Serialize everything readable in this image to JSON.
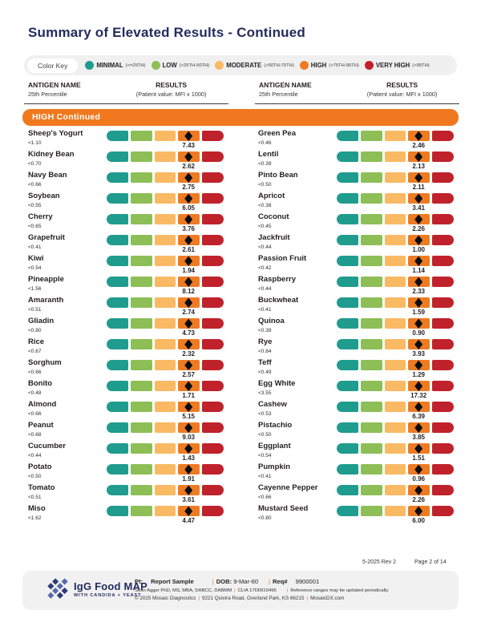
{
  "page": {
    "title": "Summary of Elevated Results - Continued"
  },
  "colors": {
    "banner": "#f0791f",
    "navy": "#242b5d",
    "marker": "#0d0d0d",
    "segment_colors": [
      "#1f9c8e",
      "#8dbf56",
      "#fab963",
      "#ee7b22",
      "#c0222b"
    ]
  },
  "color_key": {
    "label": "Color Key",
    "levels": [
      {
        "name": "MINIMAL",
        "range": "(<=25TH)",
        "color": "#1f9c8e"
      },
      {
        "name": "LOW",
        "range": "(>25TH-50TH)",
        "color": "#8dbf56"
      },
      {
        "name": "MODERATE",
        "range": "(>50TH-75TH)",
        "color": "#fab963"
      },
      {
        "name": "HIGH",
        "range": "(>75TH-95TH)",
        "color": "#ee7b22"
      },
      {
        "name": "VERY HIGH",
        "range": "(>95TH)",
        "color": "#c0222b"
      }
    ]
  },
  "column_headers": {
    "antigen_name": "ANTIGEN NAME",
    "antigen_sub": "25th Percentile",
    "results": "RESULTS",
    "results_sub": "(Patient value: MFI x 1000)"
  },
  "section": {
    "label": "HIGH Continued",
    "marker_note": "diamond marker sits in HIGH segment for every antigen"
  },
  "columns": {
    "left": [
      {
        "name": "Sheep's Yogurt",
        "percentile": "<1.10",
        "value": "7.43"
      },
      {
        "name": "Kidney Bean",
        "percentile": "<0.70",
        "value": "2.62"
      },
      {
        "name": "Navy Bean",
        "percentile": "<0.66",
        "value": "2.75"
      },
      {
        "name": "Soybean",
        "percentile": "<0.55",
        "value": "6.05"
      },
      {
        "name": "Cherry",
        "percentile": "<0.65",
        "value": "3.76"
      },
      {
        "name": "Grapefruit",
        "percentile": "<0.41",
        "value": "2.61"
      },
      {
        "name": "Kiwi",
        "percentile": "<0.54",
        "value": "1.94"
      },
      {
        "name": "Pineapple",
        "percentile": "<1.56",
        "value": "8.12"
      },
      {
        "name": "Amaranth",
        "percentile": "<0.51",
        "value": "2.74"
      },
      {
        "name": "Gliadin",
        "percentile": "<0.80",
        "value": "4.73"
      },
      {
        "name": "Rice",
        "percentile": "<0.67",
        "value": "2.32"
      },
      {
        "name": "Sorghum",
        "percentile": "<0.66",
        "value": "2.57"
      },
      {
        "name": "Bonito",
        "percentile": "<0.48",
        "value": "1.71"
      },
      {
        "name": "Almond",
        "percentile": "<0.66",
        "value": "5.15"
      },
      {
        "name": "Peanut",
        "percentile": "<0.68",
        "value": "9.03"
      },
      {
        "name": "Cucumber",
        "percentile": "<0.44",
        "value": "1.43"
      },
      {
        "name": "Potato",
        "percentile": "<0.50",
        "value": "1.91"
      },
      {
        "name": "Tomato",
        "percentile": "<0.51",
        "value": "3.61"
      },
      {
        "name": "Miso",
        "percentile": "<1.62",
        "value": "4.47"
      }
    ],
    "right": [
      {
        "name": "Green Pea",
        "percentile": "<0.46",
        "value": "2.46"
      },
      {
        "name": "Lentil",
        "percentile": "<0.39",
        "value": "2.13"
      },
      {
        "name": "Pinto Bean",
        "percentile": "<0.50",
        "value": "2.11"
      },
      {
        "name": "Apricot",
        "percentile": "<0.38",
        "value": "3.41"
      },
      {
        "name": "Coconut",
        "percentile": "<0.45",
        "value": "2.26"
      },
      {
        "name": "Jackfruit",
        "percentile": "<0.44",
        "value": "1.00"
      },
      {
        "name": "Passion Fruit",
        "percentile": "<0.42",
        "value": "1.14"
      },
      {
        "name": "Raspberry",
        "percentile": "<0.44",
        "value": "2.33"
      },
      {
        "name": "Buckwheat",
        "percentile": "<0.41",
        "value": "1.59"
      },
      {
        "name": "Quinoa",
        "percentile": "<0.39",
        "value": "0.90"
      },
      {
        "name": "Rye",
        "percentile": "<0.84",
        "value": "3.93"
      },
      {
        "name": "Teff",
        "percentile": "<0.49",
        "value": "1.29"
      },
      {
        "name": "Egg White",
        "percentile": "<3.55",
        "value": "17.32"
      },
      {
        "name": "Cashew",
        "percentile": "<0.53",
        "value": "6.39"
      },
      {
        "name": "Pistachio",
        "percentile": "<0.50",
        "value": "3.85"
      },
      {
        "name": "Eggplant",
        "percentile": "<0.54",
        "value": "1.51"
      },
      {
        "name": "Pumpkin",
        "percentile": "<0.41",
        "value": "0.96"
      },
      {
        "name": "Cayenne Pepper",
        "percentile": "<0.66",
        "value": "2.26"
      },
      {
        "name": "Mustard Seed",
        "percentile": "<0.80",
        "value": "6.00"
      }
    ]
  },
  "footer": {
    "doc_rev": "5-2025 Rev 2",
    "page_number": "Page 2 of 14",
    "logo_title": "IgG Food MAP",
    "logo_subtitle": "WITH CANDIDA + YEAST",
    "sep": "|",
    "patient_label": "Pt:",
    "patient_name": "Report Sample",
    "dob_label": "DOB:",
    "dob_value": "9-Mar-60",
    "req_label": "Req#",
    "req_value": "9900001",
    "provider_line": "Sean Agger PhD, MS, MBA, DABCC, DABMM",
    "clia_line": "CLIA 17D0919496",
    "reference_note": "Reference ranges may be updated periodically.",
    "copyright": "© 2025 Mosaic Diagnostics",
    "address": "9221 Quivira Road, Overland Park, KS 66215",
    "website": "MosaicDX.com"
  }
}
